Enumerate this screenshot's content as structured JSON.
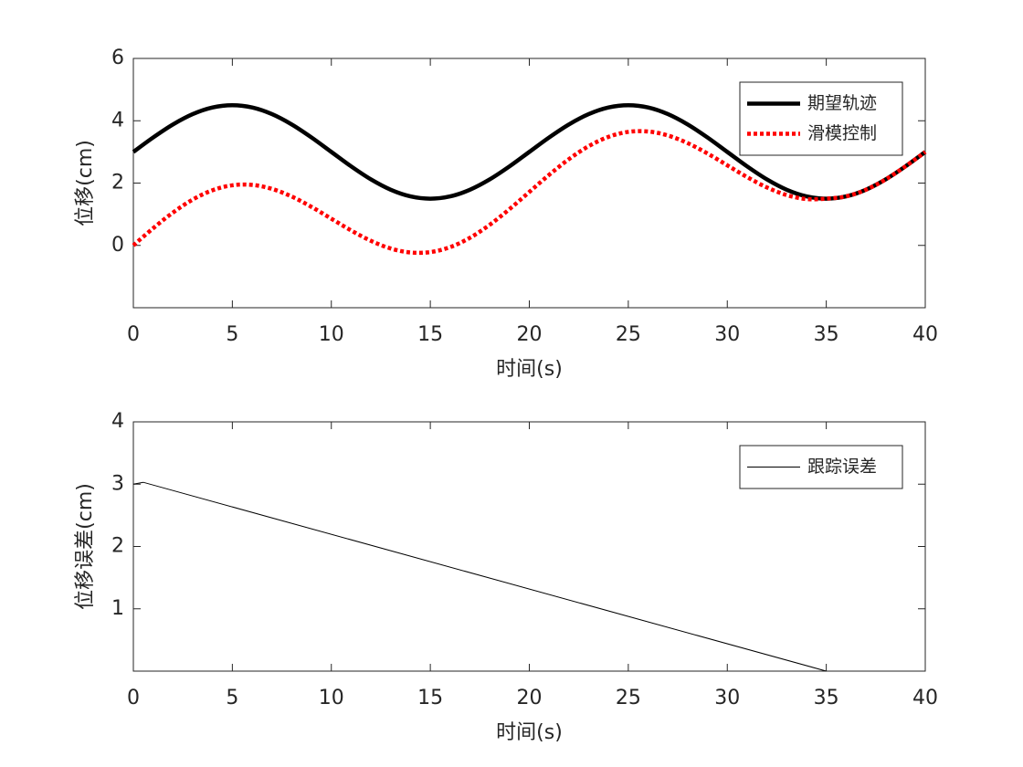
{
  "chart_data": [
    {
      "type": "line",
      "xlabel": "时间(s)",
      "ylabel": "位移(cm)",
      "x": [
        0,
        1,
        2,
        3,
        4,
        5,
        6,
        7,
        8,
        9,
        10,
        11,
        12,
        13,
        14,
        15,
        16,
        17,
        18,
        19,
        20,
        21,
        22,
        23,
        24,
        25,
        26,
        27,
        28,
        29,
        30,
        31,
        32,
        33,
        34,
        35,
        36,
        37,
        38,
        39,
        40
      ],
      "series": [
        {
          "name": "期望轨迹",
          "color": "#000000",
          "linestyle": "solid",
          "values": [
            3,
            3.464,
            3.882,
            4.214,
            4.427,
            4.5,
            4.427,
            4.214,
            3.882,
            3.464,
            3,
            2.536,
            2.118,
            1.786,
            1.573,
            1.5,
            1.573,
            1.786,
            2.118,
            2.536,
            3,
            3.464,
            3.882,
            4.214,
            4.427,
            4.5,
            4.427,
            4.214,
            3.882,
            3.464,
            3,
            2.536,
            2.118,
            1.786,
            1.573,
            1.5,
            1.573,
            1.786,
            2.118,
            2.536,
            3
          ]
        },
        {
          "name": "滑模控制",
          "color": "#ff0000",
          "linestyle": "dotted",
          "values": [
            0,
            0.55,
            1.053,
            1.471,
            1.77,
            1.929,
            1.941,
            1.814,
            1.568,
            1.235,
            0.857,
            0.479,
            0.147,
            -0.1,
            -0.227,
            -0.214,
            -0.056,
            0.243,
            0.661,
            1.165,
            1.714,
            2.264,
            2.768,
            3.185,
            3.484,
            3.643,
            3.656,
            3.528,
            3.282,
            2.95,
            2.571,
            2.193,
            1.861,
            1.615,
            1.487,
            1.5,
            1.573,
            1.786,
            2.118,
            2.536,
            3
          ]
        }
      ],
      "xlim": [
        0,
        40
      ],
      "xticks": [
        0,
        5,
        10,
        15,
        20,
        25,
        30,
        35,
        40
      ],
      "ylim": [
        -2,
        6
      ],
      "yticks": [
        0,
        2,
        4,
        6
      ],
      "legend": "northeast"
    },
    {
      "type": "line",
      "xlabel": "时间(s)",
      "ylabel": "位移误差(cm)",
      "x": [
        0,
        0.5,
        35
      ],
      "series": [
        {
          "name": "跟踪误差",
          "color": "#000000",
          "linestyle": "thin",
          "values": [
            3.0,
            3.03,
            0
          ]
        }
      ],
      "xlim": [
        0,
        40
      ],
      "xticks": [
        0,
        5,
        10,
        15,
        20,
        25,
        30,
        35,
        40
      ],
      "ylim": [
        0,
        4
      ],
      "yticks": [
        1,
        2,
        3,
        4
      ],
      "legend": "northeast"
    }
  ]
}
